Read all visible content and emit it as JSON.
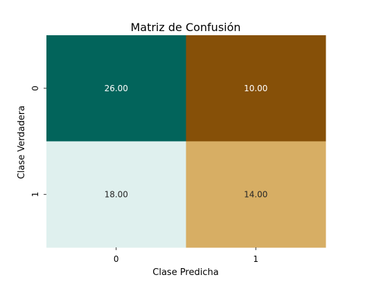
{
  "chart_data": {
    "type": "heatmap",
    "title": "Matriz de Confusión",
    "xlabel": "Clase Predicha",
    "ylabel": "Clase Verdadera",
    "x_categories": [
      "0",
      "1"
    ],
    "y_categories": [
      "0",
      "1"
    ],
    "values": [
      [
        26,
        10
      ],
      [
        18,
        14
      ]
    ],
    "value_labels": [
      [
        "26.00",
        "10.00"
      ],
      [
        "18.00",
        "14.00"
      ]
    ],
    "cell_colors": [
      [
        "#02645b",
        "#865008"
      ],
      [
        "#dff0ee",
        "#d7ae64"
      ]
    ],
    "cell_text_colors": [
      [
        "#ffffff",
        "#ffffff"
      ],
      [
        "#262626",
        "#262626"
      ]
    ],
    "colorbar": false,
    "grid": false
  }
}
